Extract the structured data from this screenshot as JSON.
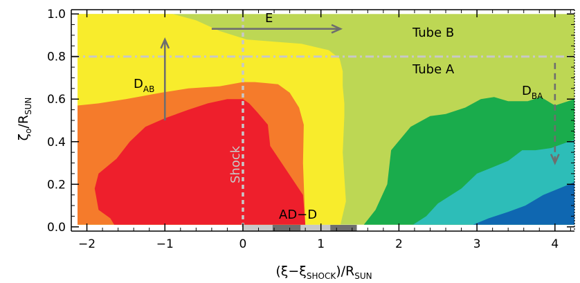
{
  "chart_data": {
    "type": "contour",
    "xlabel": {
      "main": "(ξ−ξ",
      "sub": "SHOCK",
      "tail": ")/R",
      "sub2": "SUN"
    },
    "ylabel": {
      "main": "ζ",
      "sub": "o",
      "tail": "/R",
      "sub2": "SUN"
    },
    "xlim": [
      -2.2,
      4.25
    ],
    "ylim": [
      -0.02,
      1.02
    ],
    "x_ticks": [
      -2,
      -1,
      0,
      1,
      2,
      3,
      4
    ],
    "x_tick_labels": [
      "−2",
      "−1",
      "0",
      "1",
      "2",
      "3",
      "4"
    ],
    "y_ticks": [
      0.0,
      0.2,
      0.4,
      0.6,
      0.8,
      1.0
    ],
    "y_tick_labels": [
      "0.0",
      "0.2",
      "0.4",
      "0.6",
      "0.8",
      "1.0"
    ],
    "regions": [
      {
        "color": "#bdd754",
        "points": [
          [
            -2.12,
            0.01
          ],
          [
            4.25,
            0.01
          ],
          [
            4.25,
            1.0
          ],
          [
            -2.12,
            1.0
          ]
        ]
      },
      {
        "color": "#f8ec2c",
        "points": [
          [
            -2.12,
            0.01
          ],
          [
            1.25,
            0.01
          ],
          [
            1.32,
            0.12
          ],
          [
            1.28,
            0.35
          ],
          [
            1.3,
            0.52
          ],
          [
            1.3,
            0.58
          ],
          [
            1.28,
            0.66
          ],
          [
            1.28,
            0.73
          ],
          [
            1.24,
            0.79
          ],
          [
            1.1,
            0.83
          ],
          [
            0.75,
            0.86
          ],
          [
            0.4,
            0.87
          ],
          [
            0.05,
            0.88
          ],
          [
            -0.3,
            0.92
          ],
          [
            -0.6,
            0.97
          ],
          [
            -0.9,
            1.0
          ],
          [
            -2.12,
            1.0
          ]
        ]
      },
      {
        "color": "#f57b2b",
        "points": [
          [
            -2.12,
            0.01
          ],
          [
            0.8,
            0.01
          ],
          [
            0.77,
            0.3
          ],
          [
            0.78,
            0.48
          ],
          [
            0.72,
            0.56
          ],
          [
            0.6,
            0.63
          ],
          [
            0.45,
            0.67
          ],
          [
            0.15,
            0.68
          ],
          [
            0.0,
            0.68
          ],
          [
            -0.3,
            0.66
          ],
          [
            -0.7,
            0.65
          ],
          [
            -1.05,
            0.63
          ],
          [
            -1.5,
            0.6
          ],
          [
            -1.85,
            0.58
          ],
          [
            -2.12,
            0.57
          ],
          [
            -2.12,
            0.01
          ]
        ]
      },
      {
        "color": "#ee1f2c",
        "points": [
          [
            -1.65,
            0.01
          ],
          [
            0.8,
            0.01
          ],
          [
            0.77,
            0.15
          ],
          [
            0.35,
            0.38
          ],
          [
            0.32,
            0.48
          ],
          [
            0.18,
            0.54
          ],
          [
            0.08,
            0.58
          ],
          [
            0.0,
            0.6
          ],
          [
            -0.2,
            0.6
          ],
          [
            -0.45,
            0.58
          ],
          [
            -0.7,
            0.55
          ],
          [
            -1.0,
            0.51
          ],
          [
            -1.25,
            0.47
          ],
          [
            -1.45,
            0.4
          ],
          [
            -1.62,
            0.32
          ],
          [
            -1.85,
            0.25
          ],
          [
            -1.9,
            0.18
          ],
          [
            -1.85,
            0.08
          ],
          [
            -1.7,
            0.04
          ]
        ]
      },
      {
        "color": "#1aac4c",
        "points": [
          [
            1.55,
            0.01
          ],
          [
            4.25,
            0.01
          ],
          [
            4.25,
            0.6
          ],
          [
            4.0,
            0.57
          ],
          [
            3.82,
            0.61
          ],
          [
            3.65,
            0.59
          ],
          [
            3.4,
            0.59
          ],
          [
            3.22,
            0.61
          ],
          [
            3.05,
            0.6
          ],
          [
            2.85,
            0.56
          ],
          [
            2.6,
            0.53
          ],
          [
            2.4,
            0.52
          ],
          [
            2.15,
            0.47
          ],
          [
            1.9,
            0.36
          ],
          [
            1.85,
            0.2
          ],
          [
            1.7,
            0.08
          ]
        ]
      },
      {
        "color": "#2dbdb8",
        "points": [
          [
            2.18,
            0.01
          ],
          [
            4.25,
            0.01
          ],
          [
            4.25,
            0.41
          ],
          [
            3.95,
            0.37
          ],
          [
            3.75,
            0.36
          ],
          [
            3.58,
            0.36
          ],
          [
            3.4,
            0.31
          ],
          [
            3.2,
            0.28
          ],
          [
            3.0,
            0.25
          ],
          [
            2.8,
            0.18
          ],
          [
            2.5,
            0.11
          ],
          [
            2.35,
            0.05
          ]
        ]
      },
      {
        "color": "#0f67b1",
        "points": [
          [
            2.95,
            0.01
          ],
          [
            4.25,
            0.01
          ],
          [
            4.25,
            0.21
          ],
          [
            4.05,
            0.18
          ],
          [
            3.85,
            0.15
          ],
          [
            3.62,
            0.1
          ],
          [
            3.4,
            0.07
          ],
          [
            3.15,
            0.04
          ]
        ]
      }
    ],
    "annotations": {
      "tube_b": "Tube B",
      "tube_a": "Tube A",
      "e_label": "E",
      "dab_main": "D",
      "dab_sub": "AB",
      "dba_main": "D",
      "dba_sub": "BA",
      "shock_label": "Shock",
      "adid_label": "AD−D"
    },
    "lines": {
      "tube_boundary_y": 0.8,
      "shock_x": 0.0
    },
    "arrows": [
      {
        "name": "e-arrow",
        "from": [
          -0.4,
          0.93
        ],
        "to": [
          1.25,
          0.93
        ],
        "style": "solid"
      },
      {
        "name": "dab-arrow",
        "from": [
          -1.0,
          0.5
        ],
        "to": [
          -1.0,
          0.88
        ],
        "style": "solid"
      },
      {
        "name": "dba-arrow",
        "from": [
          4.0,
          0.77
        ],
        "to": [
          4.0,
          0.3
        ],
        "style": "dashed"
      }
    ],
    "ad_bar": [
      {
        "x0": 0.0,
        "x1": 0.38,
        "color": "#c8c8c8"
      },
      {
        "x0": 0.38,
        "x1": 0.74,
        "color": "#6e6e6e"
      },
      {
        "x0": 0.74,
        "x1": 1.12,
        "color": "#c8c8c8"
      },
      {
        "x0": 1.12,
        "x1": 1.46,
        "color": "#6e6e6e"
      }
    ]
  }
}
